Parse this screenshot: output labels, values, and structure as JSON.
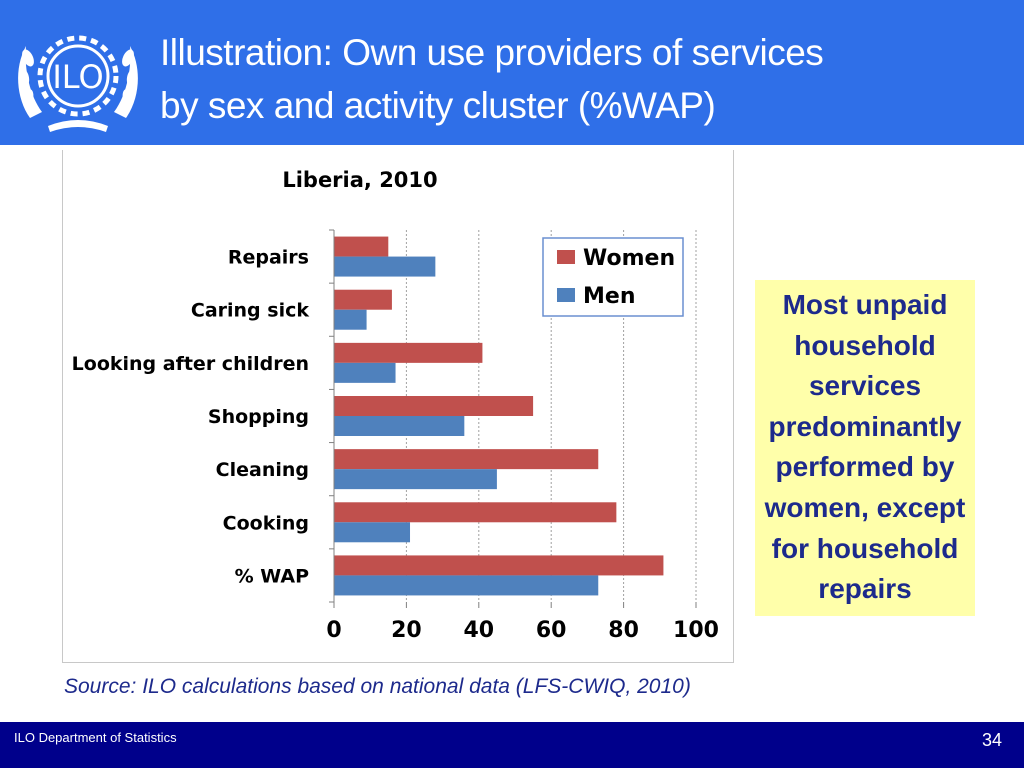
{
  "header": {
    "title_line1": "Illustration: Own use providers of services",
    "title_line2": "by sex and activity cluster (%WAP)",
    "logo_text": "ILO"
  },
  "chart_data": {
    "type": "bar",
    "orientation": "horizontal",
    "title": "Liberia, 2010",
    "categories": [
      "Repairs",
      "Caring sick",
      "Looking after children",
      "Shopping",
      "Cleaning",
      "Cooking",
      "% WAP"
    ],
    "series": [
      {
        "name": "Women",
        "color": "#c0504d",
        "values": [
          15,
          16,
          41,
          55,
          73,
          78,
          91
        ]
      },
      {
        "name": "Men",
        "color": "#4f81bd",
        "values": [
          28,
          9,
          17,
          36,
          45,
          21,
          73
        ]
      }
    ],
    "xlim": [
      0,
      100
    ],
    "xticks": [
      "0",
      "20",
      "40",
      "60",
      "80",
      "100"
    ],
    "xlabel": "",
    "ylabel": "",
    "grid": true,
    "legend": "top-right"
  },
  "callout": {
    "lines": [
      "Most unpaid",
      "household",
      "services",
      "predominantly",
      "performed by",
      "women, except",
      "for household",
      "repairs"
    ]
  },
  "source": "Source: ILO calculations based on national data (LFS-CWIQ, 2010)",
  "footer": {
    "department": "ILO Department of Statistics",
    "page_number": "34"
  },
  "colors": {
    "header_bg": "#2f6fe8",
    "footer_bg": "#00008b",
    "callout_bg": "#ffffaa",
    "callout_text": "#1d2a8c"
  }
}
